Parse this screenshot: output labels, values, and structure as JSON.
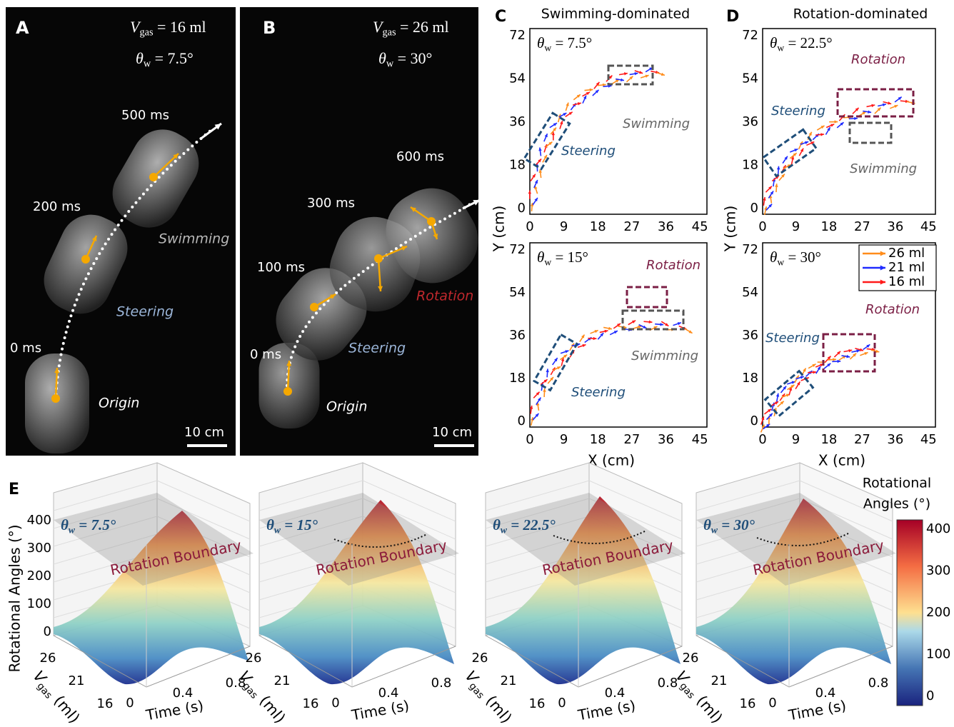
{
  "panels": {
    "a": {
      "label": "A",
      "vgas": {
        "symbol": "V",
        "sub": "gas",
        "rest": " = 16 ml"
      },
      "theta": {
        "symbol": "θ",
        "sub": "w",
        "rest": " = 7.5°"
      },
      "times": [
        "500 ms",
        "200 ms",
        "0 ms"
      ],
      "stages": [
        "Swimming",
        "Steering",
        "Origin"
      ],
      "scale": "10 cm"
    },
    "b": {
      "label": "B",
      "vgas": {
        "symbol": "V",
        "sub": "gas",
        "rest": " = 26 ml"
      },
      "theta": {
        "symbol": "θ",
        "sub": "w",
        "rest": " = 30°"
      },
      "times": [
        "600 ms",
        "300 ms",
        "100 ms",
        "0 ms"
      ],
      "stages": [
        "Rotation",
        "Steering",
        "Origin"
      ],
      "scale": "10 cm"
    },
    "c": {
      "label": "C",
      "title": "Swimming-dominated",
      "plots": [
        {
          "theta": {
            "symbol": "θ",
            "sub": "w",
            "rest": " = 7.5°"
          },
          "annotations": [
            "Steering",
            "Swimming"
          ]
        },
        {
          "theta": {
            "symbol": "θ",
            "sub": "w",
            "rest": " = 15°"
          },
          "annotations": [
            "Rotation",
            "Swimming",
            "Steering"
          ]
        }
      ],
      "xticks": [
        0,
        9,
        18,
        27,
        36,
        45
      ],
      "yticks": [
        0,
        18,
        36,
        54,
        72
      ],
      "xlabel": "X (cm)",
      "ylabel": "Y (cm)"
    },
    "d": {
      "label": "D",
      "title": "Rotation-dominated",
      "plots": [
        {
          "theta": {
            "symbol": "θ",
            "sub": "w",
            "rest": " = 22.5°"
          },
          "annotations": [
            "Rotation",
            "Steering",
            "Swimming"
          ]
        },
        {
          "theta": {
            "symbol": "θ",
            "sub": "w",
            "rest": " = 30°"
          },
          "annotations": [
            "Rotation",
            "Steering"
          ]
        }
      ],
      "xticks": [
        0,
        9,
        18,
        27,
        36,
        45
      ],
      "yticks": [
        0,
        18,
        36,
        54,
        72
      ],
      "xlabel": "X (cm)",
      "ylabel": "Y (cm)",
      "legend": [
        {
          "name": "26 ml",
          "color": "#ff8c1a"
        },
        {
          "name": "21 ml",
          "color": "#1f2bff"
        },
        {
          "name": "16 ml",
          "color": "#ff1a1a"
        }
      ]
    },
    "e": {
      "label": "E",
      "plots": [
        {
          "theta": {
            "symbol": "θ",
            "sub": "w",
            "rest": " = 7.5°"
          },
          "boundary": "Rotation Boundary"
        },
        {
          "theta": {
            "symbol": "θ",
            "sub": "w",
            "rest": " = 15°"
          },
          "boundary": "Rotation Boundary"
        },
        {
          "theta": {
            "symbol": "θ",
            "sub": "w",
            "rest": " = 22.5°"
          },
          "boundary": "Rotation Boundary"
        },
        {
          "theta": {
            "symbol": "θ",
            "sub": "w",
            "rest": " = 30°"
          },
          "boundary": "Rotation Boundary"
        }
      ],
      "zticks": [
        0,
        100,
        200,
        300,
        400
      ],
      "zlabel": "Rotational Angles (°)",
      "vgas_label": {
        "symbol": "V",
        "sub": "gas",
        "rest": " (ml)"
      },
      "vgas_ticks": [
        16,
        21,
        26
      ],
      "time_label": "Time (s)",
      "time_ticks": [
        0,
        0.4,
        0.8
      ],
      "colorbar": {
        "title": [
          "Rotational",
          "Angles (°)"
        ],
        "ticks": [
          0,
          100,
          200,
          300,
          400
        ]
      }
    }
  }
}
